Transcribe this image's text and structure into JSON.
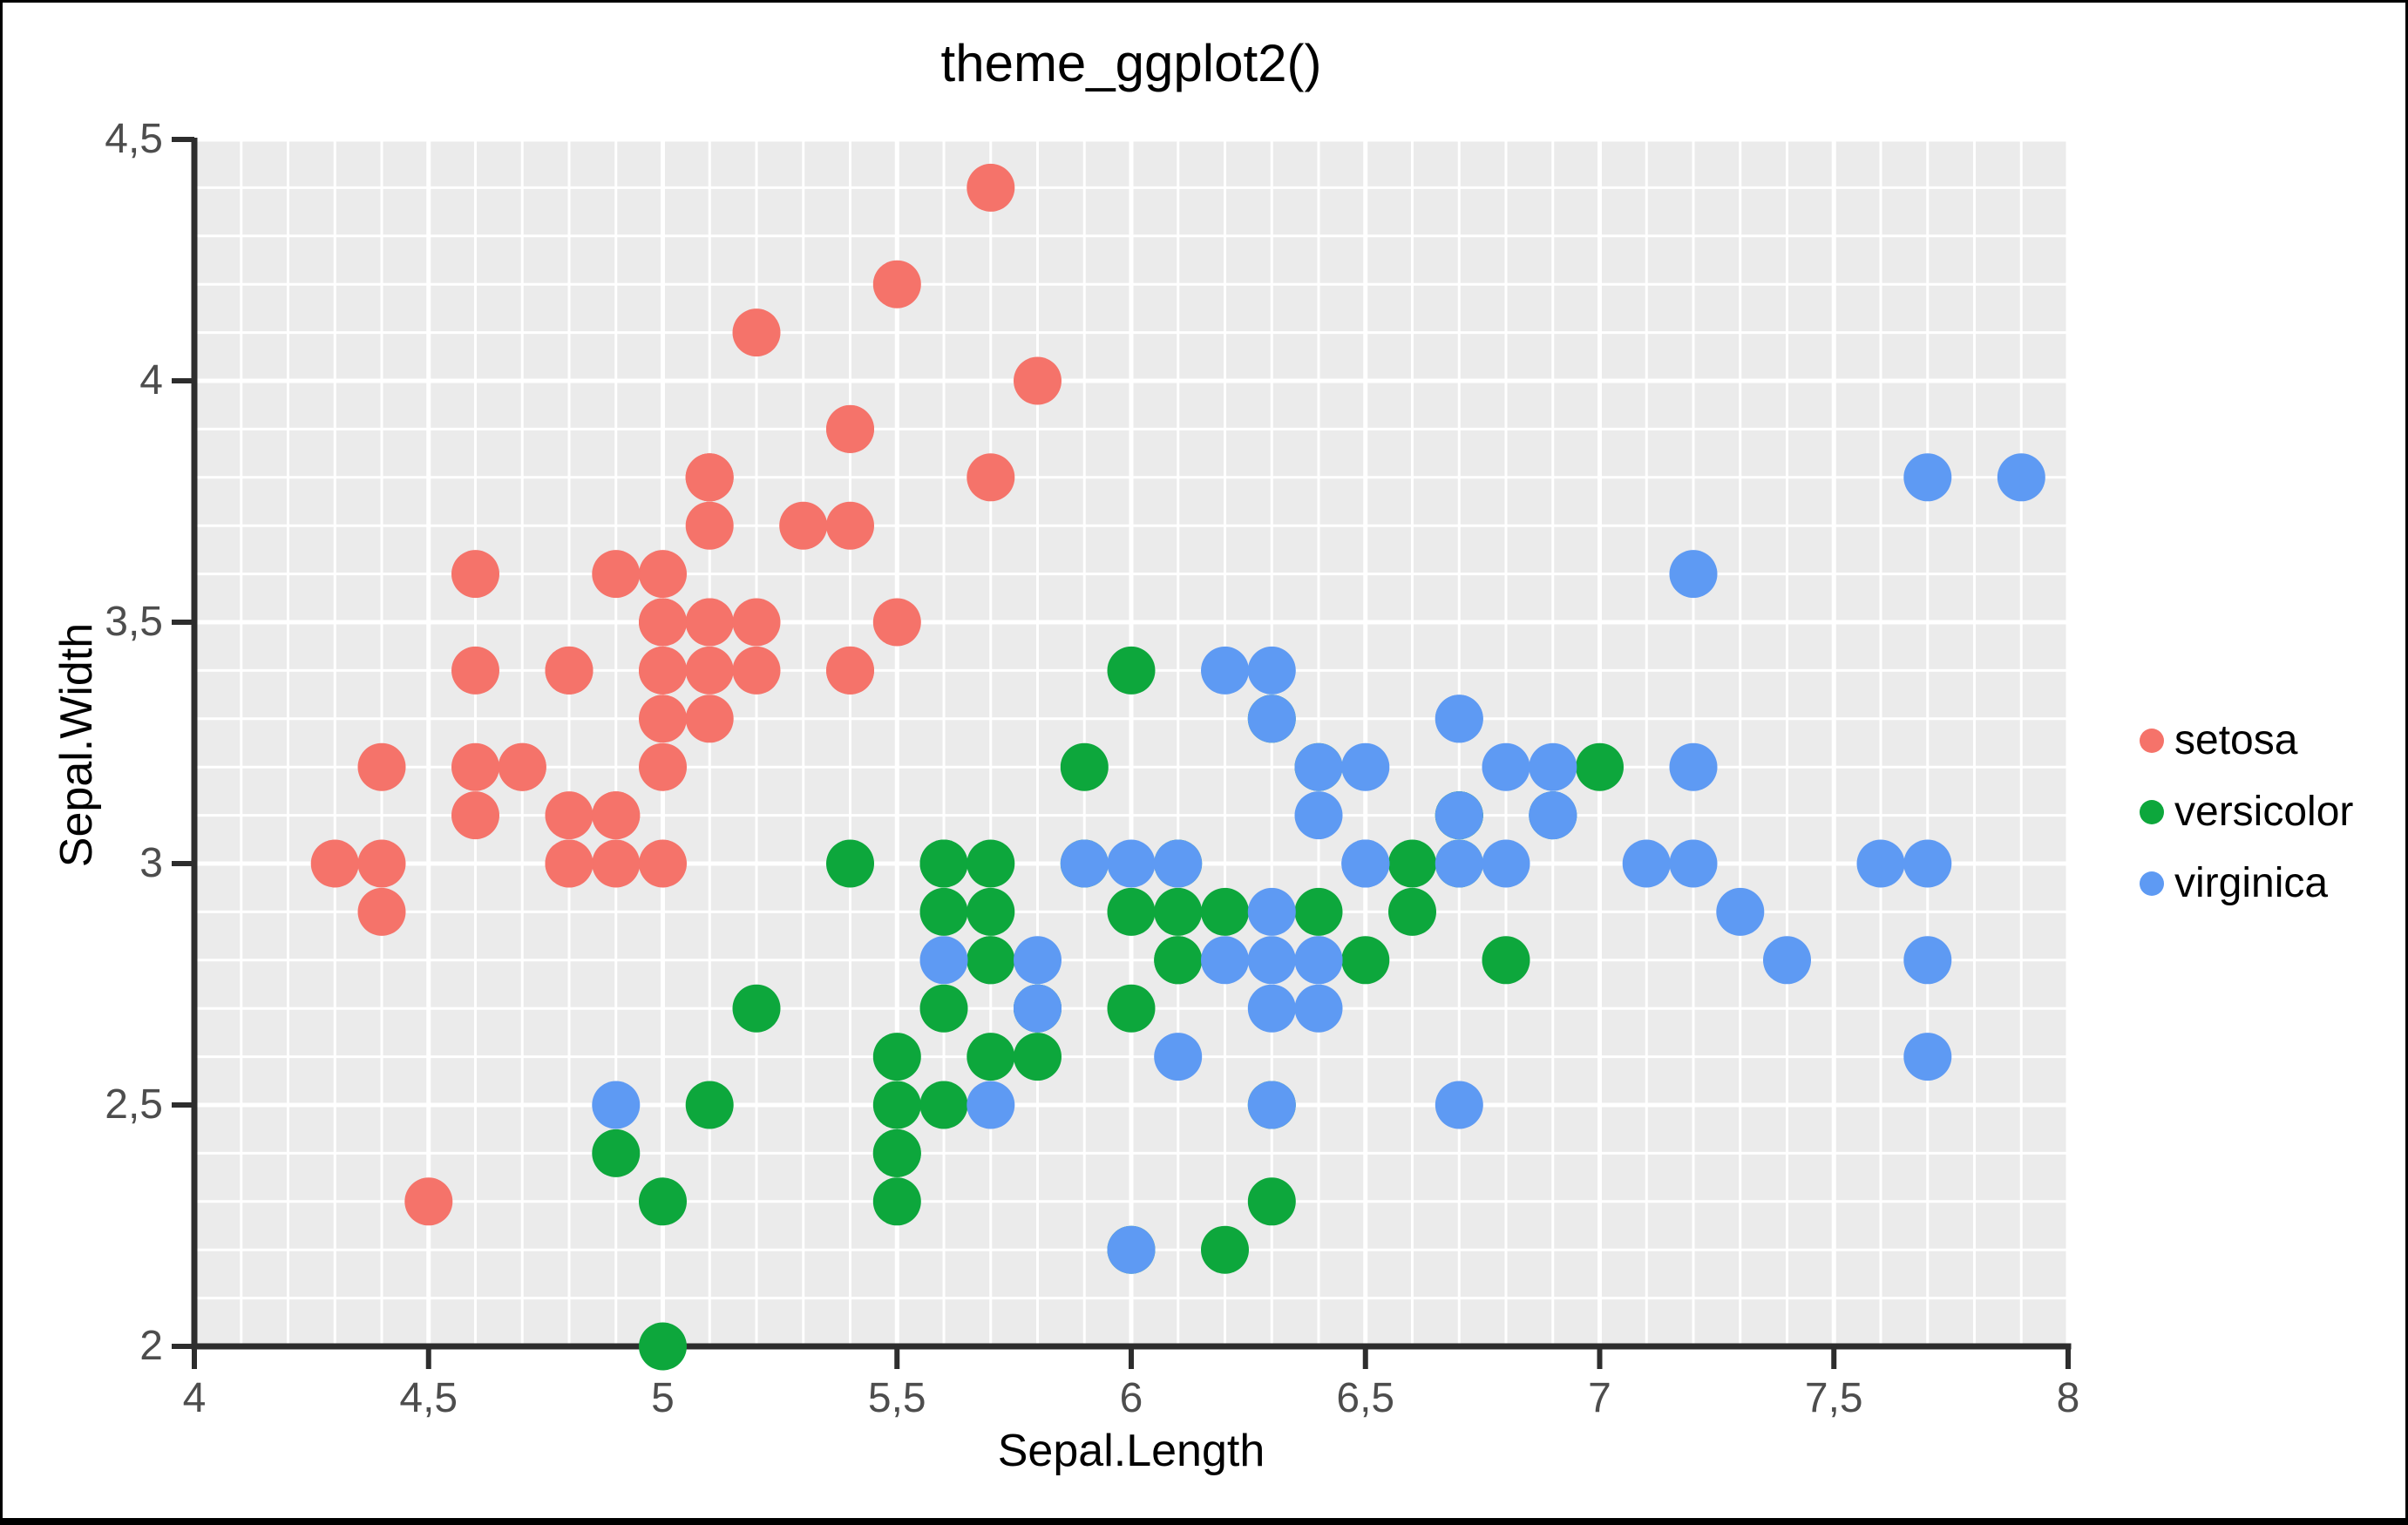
{
  "chart_data": {
    "type": "scatter",
    "title": "theme_ggplot2()",
    "xlabel": "Sepal.Length",
    "ylabel": "Sepal.Width",
    "xlim": [
      4,
      8
    ],
    "ylim": [
      2,
      4.5
    ],
    "x_ticks": {
      "values": [
        4,
        4.5,
        5,
        5.5,
        6,
        6.5,
        7,
        7.5,
        8
      ],
      "labels": [
        "4",
        "4,5",
        "5",
        "5,5",
        "6",
        "6,5",
        "7",
        "7,5",
        "8"
      ]
    },
    "y_ticks": {
      "values": [
        2,
        2.5,
        3,
        3.5,
        4,
        4.5
      ],
      "labels": [
        "2",
        "2,5",
        "3",
        "3,5",
        "4",
        "4,5"
      ]
    },
    "grid": {
      "panel_bg": "#EBEBEB",
      "line_color": "#FFFFFF",
      "minor_step": 0.1,
      "major_step": 0.5,
      "grid_on": true
    },
    "axis": {
      "line_color": "#2D2D2D",
      "tick_label_color": "#4D4D4D"
    },
    "legend_position": "right",
    "series": [
      {
        "name": "setosa",
        "color": "#F5736A",
        "points": [
          [
            5.1,
            3.5
          ],
          [
            4.9,
            3.0
          ],
          [
            4.7,
            3.2
          ],
          [
            4.6,
            3.1
          ],
          [
            5.0,
            3.6
          ],
          [
            5.4,
            3.9
          ],
          [
            4.6,
            3.4
          ],
          [
            5.0,
            3.4
          ],
          [
            4.4,
            2.9
          ],
          [
            4.9,
            3.1
          ],
          [
            5.4,
            3.7
          ],
          [
            4.8,
            3.4
          ],
          [
            4.8,
            3.0
          ],
          [
            4.3,
            3.0
          ],
          [
            5.8,
            4.0
          ],
          [
            5.7,
            4.4
          ],
          [
            5.4,
            3.9
          ],
          [
            5.1,
            3.5
          ],
          [
            5.7,
            3.8
          ],
          [
            5.1,
            3.8
          ],
          [
            5.4,
            3.4
          ],
          [
            5.1,
            3.7
          ],
          [
            4.6,
            3.6
          ],
          [
            5.1,
            3.3
          ],
          [
            4.8,
            3.4
          ],
          [
            5.0,
            3.0
          ],
          [
            5.0,
            3.4
          ],
          [
            5.2,
            3.5
          ],
          [
            5.2,
            3.4
          ],
          [
            4.7,
            3.2
          ],
          [
            4.8,
            3.1
          ],
          [
            5.4,
            3.4
          ],
          [
            5.2,
            4.1
          ],
          [
            5.5,
            4.2
          ],
          [
            4.9,
            3.1
          ],
          [
            5.0,
            3.2
          ],
          [
            5.5,
            3.5
          ],
          [
            4.9,
            3.6
          ],
          [
            4.4,
            3.0
          ],
          [
            5.1,
            3.4
          ],
          [
            5.0,
            3.5
          ],
          [
            4.5,
            2.3
          ],
          [
            4.4,
            3.2
          ],
          [
            5.0,
            3.5
          ],
          [
            5.1,
            3.8
          ],
          [
            4.8,
            3.0
          ],
          [
            5.1,
            3.8
          ],
          [
            4.6,
            3.2
          ],
          [
            5.3,
            3.7
          ],
          [
            5.0,
            3.3
          ]
        ]
      },
      {
        "name": "versicolor",
        "color": "#0DA73C",
        "points": [
          [
            7.0,
            3.2
          ],
          [
            6.4,
            3.2
          ],
          [
            6.9,
            3.1
          ],
          [
            5.5,
            2.3
          ],
          [
            6.5,
            2.8
          ],
          [
            5.7,
            2.8
          ],
          [
            6.3,
            3.3
          ],
          [
            4.9,
            2.4
          ],
          [
            6.6,
            2.9
          ],
          [
            5.2,
            2.7
          ],
          [
            5.0,
            2.0
          ],
          [
            5.9,
            3.0
          ],
          [
            6.0,
            2.2
          ],
          [
            6.1,
            2.9
          ],
          [
            5.6,
            2.9
          ],
          [
            6.7,
            3.1
          ],
          [
            5.6,
            3.0
          ],
          [
            5.8,
            2.7
          ],
          [
            6.2,
            2.2
          ],
          [
            5.6,
            2.5
          ],
          [
            5.9,
            3.2
          ],
          [
            6.1,
            2.8
          ],
          [
            6.3,
            2.5
          ],
          [
            6.1,
            2.8
          ],
          [
            6.4,
            2.9
          ],
          [
            6.6,
            3.0
          ],
          [
            6.8,
            2.8
          ],
          [
            6.7,
            3.0
          ],
          [
            6.0,
            2.9
          ],
          [
            5.7,
            2.6
          ],
          [
            5.5,
            2.4
          ],
          [
            5.5,
            2.4
          ],
          [
            5.8,
            2.7
          ],
          [
            6.0,
            2.7
          ],
          [
            5.4,
            3.0
          ],
          [
            6.0,
            3.4
          ],
          [
            6.7,
            3.1
          ],
          [
            6.3,
            2.3
          ],
          [
            5.6,
            3.0
          ],
          [
            5.5,
            2.5
          ],
          [
            5.5,
            2.6
          ],
          [
            6.1,
            3.0
          ],
          [
            5.8,
            2.6
          ],
          [
            5.0,
            2.3
          ],
          [
            5.6,
            2.7
          ],
          [
            5.7,
            3.0
          ],
          [
            5.7,
            2.9
          ],
          [
            6.2,
            2.9
          ],
          [
            5.1,
            2.5
          ],
          [
            5.7,
            2.8
          ]
        ]
      },
      {
        "name": "virginica",
        "color": "#5E9AF3",
        "points": [
          [
            6.3,
            3.3
          ],
          [
            5.8,
            2.7
          ],
          [
            7.1,
            3.0
          ],
          [
            6.3,
            2.9
          ],
          [
            6.5,
            3.0
          ],
          [
            7.6,
            3.0
          ],
          [
            4.9,
            2.5
          ],
          [
            7.3,
            2.9
          ],
          [
            6.7,
            2.5
          ],
          [
            7.2,
            3.6
          ],
          [
            6.5,
            3.2
          ],
          [
            6.4,
            2.7
          ],
          [
            6.8,
            3.0
          ],
          [
            5.7,
            2.5
          ],
          [
            5.8,
            2.8
          ],
          [
            6.4,
            3.2
          ],
          [
            6.5,
            3.0
          ],
          [
            7.7,
            3.8
          ],
          [
            7.7,
            2.6
          ],
          [
            6.0,
            2.2
          ],
          [
            6.9,
            3.2
          ],
          [
            5.6,
            2.8
          ],
          [
            7.7,
            2.8
          ],
          [
            6.3,
            2.7
          ],
          [
            6.7,
            3.3
          ],
          [
            7.2,
            3.2
          ],
          [
            6.2,
            2.8
          ],
          [
            6.1,
            3.0
          ],
          [
            6.4,
            2.8
          ],
          [
            7.2,
            3.0
          ],
          [
            7.4,
            2.8
          ],
          [
            7.9,
            3.8
          ],
          [
            6.4,
            2.8
          ],
          [
            6.3,
            2.8
          ],
          [
            6.1,
            2.6
          ],
          [
            7.7,
            3.0
          ],
          [
            6.3,
            3.4
          ],
          [
            6.4,
            3.1
          ],
          [
            6.0,
            3.0
          ],
          [
            6.9,
            3.1
          ],
          [
            6.7,
            3.1
          ],
          [
            6.9,
            3.1
          ],
          [
            5.8,
            2.7
          ],
          [
            6.8,
            3.2
          ],
          [
            6.7,
            3.3
          ],
          [
            6.7,
            3.0
          ],
          [
            6.3,
            2.5
          ],
          [
            6.5,
            3.0
          ],
          [
            6.2,
            3.4
          ],
          [
            5.9,
            3.0
          ]
        ]
      }
    ]
  }
}
